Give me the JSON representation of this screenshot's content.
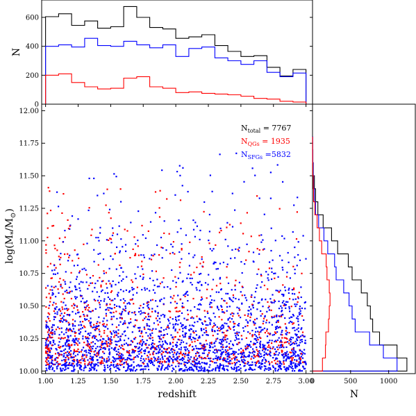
{
  "chart_data": [
    {
      "panel": "main-scatter",
      "type": "scatter",
      "xlabel": "redshift",
      "ylabel": "log(M*/M⊙)",
      "xlim": [
        0.97,
        3.05
      ],
      "ylim": [
        9.98,
        12.05
      ],
      "xticks": [
        "1.00",
        "1.25",
        "1.50",
        "1.75",
        "2.00",
        "2.25",
        "2.50",
        "2.75",
        "3.00"
      ],
      "yticks": [
        "10.00",
        "10.25",
        "10.50",
        "10.75",
        "11.00",
        "11.25",
        "11.50",
        "11.75",
        "12.00"
      ],
      "series": [
        {
          "name": "SFGs",
          "color": "#0000ff",
          "count": 5832
        },
        {
          "name": "QGs",
          "color": "#ff0000",
          "count": 1935
        }
      ],
      "annotations": [
        {
          "base": "N",
          "sub": "total",
          "eq": " = 7767",
          "color": "#000000"
        },
        {
          "base": "N",
          "sub": "QGs",
          "eq": " = 1935",
          "color": "#ff0000"
        },
        {
          "base": "N",
          "sub": "SFGs",
          "eq": " =5832",
          "color": "#0000ff"
        }
      ]
    },
    {
      "panel": "top-histogram",
      "type": "histogram",
      "ylabel": "N",
      "yticks": [
        "0",
        "200",
        "400",
        "600"
      ],
      "ylim": [
        0,
        720
      ],
      "bin_edges": [
        1.0,
        1.1,
        1.2,
        1.3,
        1.4,
        1.5,
        1.6,
        1.7,
        1.8,
        1.9,
        2.0,
        2.1,
        2.2,
        2.3,
        2.4,
        2.5,
        2.6,
        2.7,
        2.8,
        2.9,
        3.0
      ],
      "series": [
        {
          "name": "total",
          "color": "#000000",
          "values": [
            605,
            625,
            545,
            575,
            525,
            535,
            675,
            600,
            530,
            520,
            455,
            465,
            480,
            405,
            365,
            330,
            335,
            255,
            195,
            240
          ]
        },
        {
          "name": "SFGs",
          "color": "#0000ff",
          "values": [
            400,
            410,
            395,
            455,
            405,
            400,
            435,
            410,
            390,
            410,
            330,
            385,
            395,
            320,
            300,
            275,
            300,
            220,
            190,
            215
          ]
        },
        {
          "name": "QGs",
          "color": "#ff0000",
          "values": [
            200,
            210,
            150,
            120,
            105,
            110,
            180,
            190,
            120,
            110,
            80,
            85,
            75,
            70,
            65,
            55,
            40,
            35,
            20,
            15
          ]
        }
      ]
    },
    {
      "panel": "right-histogram",
      "type": "histogram",
      "orientation": "horizontal",
      "xlabel": "N",
      "xticks": [
        "0",
        "500",
        "1000"
      ],
      "xlim": [
        0,
        1350
      ],
      "bin_edges": [
        10.0,
        10.1,
        10.2,
        10.3,
        10.4,
        10.5,
        10.6,
        10.7,
        10.8,
        10.9,
        11.0,
        11.1,
        11.2,
        11.3,
        11.4,
        11.5,
        11.6,
        11.7,
        11.8
      ],
      "series": [
        {
          "name": "total",
          "color": "#000000",
          "values": [
            1240,
            1110,
            880,
            790,
            760,
            720,
            640,
            520,
            470,
            330,
            250,
            140,
            70,
            40,
            25,
            10,
            5,
            2
          ]
        },
        {
          "name": "SFGs",
          "color": "#0000ff",
          "values": [
            1110,
            930,
            750,
            560,
            520,
            480,
            410,
            310,
            290,
            200,
            150,
            80,
            40,
            25,
            15,
            8,
            4,
            2
          ]
        },
        {
          "name": "QGs",
          "color": "#ff0000",
          "values": [
            130,
            170,
            175,
            210,
            220,
            230,
            220,
            190,
            180,
            120,
            90,
            60,
            30,
            15,
            10,
            3,
            1,
            0
          ]
        }
      ]
    }
  ]
}
